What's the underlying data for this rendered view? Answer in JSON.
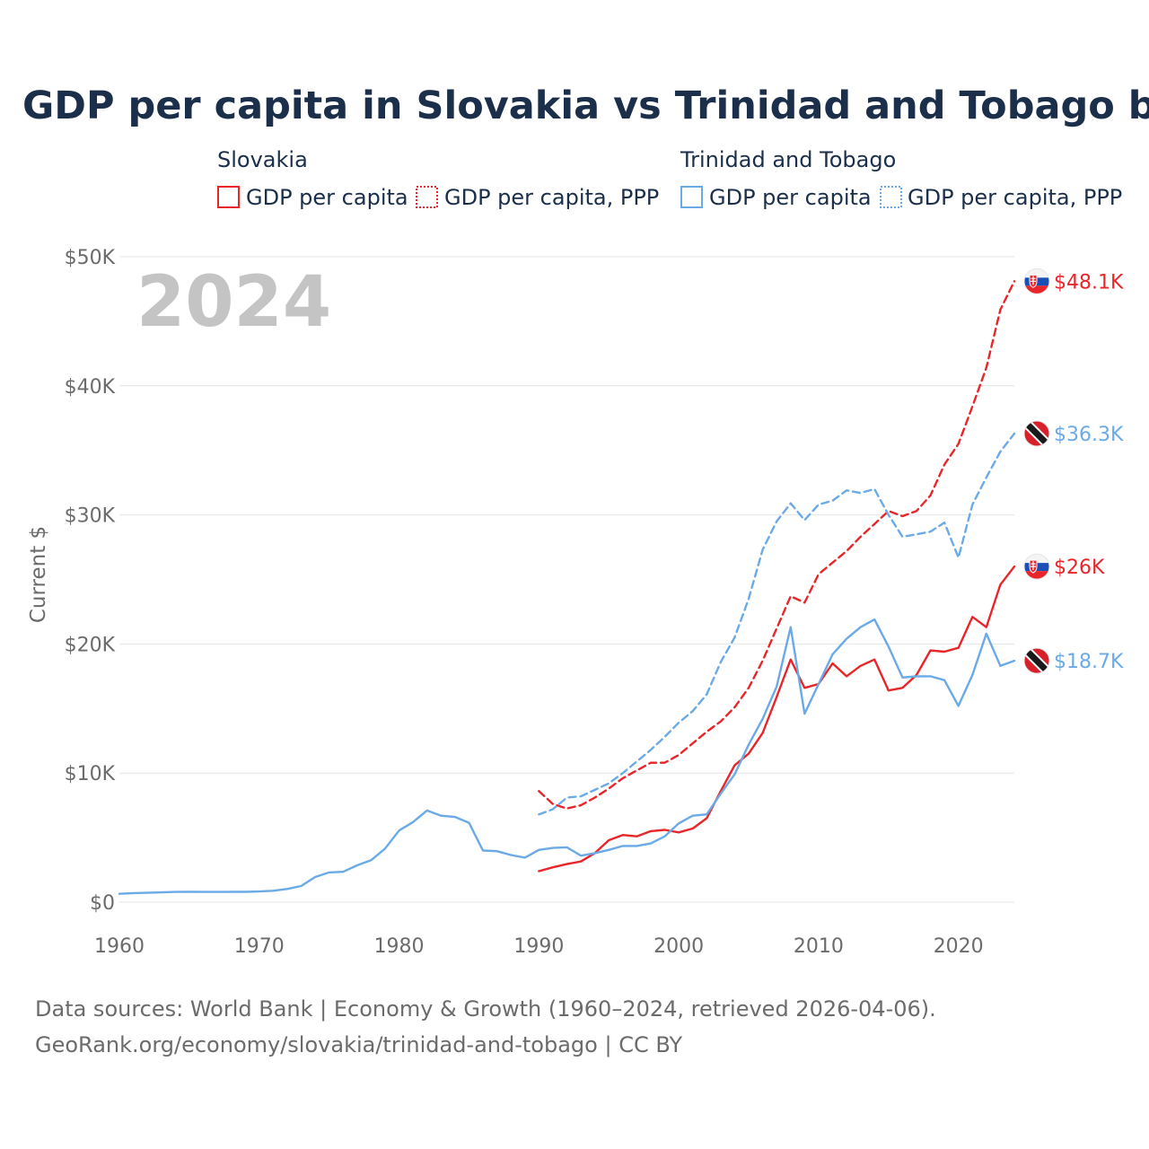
{
  "chart_data": {
    "type": "line",
    "title": "GDP per capita in Slovakia vs Trinidad and Tobago by year",
    "ylabel": "Current $",
    "xlabel": "",
    "xlim": [
      1960,
      2024
    ],
    "ylim": [
      0,
      50000
    ],
    "x_ticks": [
      1960,
      1970,
      1980,
      1990,
      2000,
      2010,
      2020
    ],
    "x_tick_labels": [
      "1960",
      "1970",
      "1980",
      "1990",
      "2000",
      "2010",
      "2020"
    ],
    "y_ticks": [
      0,
      10000,
      20000,
      30000,
      40000,
      50000
    ],
    "y_tick_labels": [
      "$0",
      "$10K",
      "$20K",
      "$30K",
      "$40K",
      "$50K"
    ],
    "grid": true,
    "year_watermark": "2024",
    "legend": {
      "groups": [
        {
          "country": "Slovakia",
          "items": [
            "GDP per capita",
            "GDP per capita, PPP"
          ]
        },
        {
          "country": "Trinidad and Tobago",
          "items": [
            "GDP per capita",
            "GDP per capita, PPP"
          ]
        }
      ]
    },
    "colors": {
      "Slovakia": "#e8262a",
      "Trinidad and Tobago": "#6aaae6"
    },
    "series": [
      {
        "name": "Slovakia GDP per capita",
        "country": "Slovakia",
        "style": "solid",
        "end_label": "$26K",
        "x": [
          1990,
          1991,
          1992,
          1993,
          1994,
          1995,
          1996,
          1997,
          1998,
          1999,
          2000,
          2001,
          2002,
          2003,
          2004,
          2005,
          2006,
          2007,
          2008,
          2009,
          2010,
          2011,
          2012,
          2013,
          2014,
          2015,
          2016,
          2017,
          2018,
          2019,
          2020,
          2021,
          2022,
          2023,
          2024
        ],
        "values": [
          2400,
          2700,
          2950,
          3150,
          3800,
          4800,
          5200,
          5100,
          5500,
          5600,
          5400,
          5700,
          6500,
          8600,
          10600,
          11500,
          13100,
          15900,
          18800,
          16600,
          16900,
          18500,
          17500,
          18300,
          18800,
          16400,
          16600,
          17600,
          19500,
          19400,
          19700,
          22100,
          21300,
          24600,
          26000
        ]
      },
      {
        "name": "Slovakia GDP per capita, PPP",
        "country": "Slovakia",
        "style": "dashed",
        "end_label": "$48.1K",
        "x": [
          1990,
          1991,
          1992,
          1993,
          1994,
          1995,
          1996,
          1997,
          1998,
          1999,
          2000,
          2001,
          2002,
          2003,
          2004,
          2005,
          2006,
          2007,
          2008,
          2009,
          2010,
          2011,
          2012,
          2013,
          2014,
          2015,
          2016,
          2017,
          2018,
          2019,
          2020,
          2021,
          2022,
          2023,
          2024
        ],
        "values": [
          8600,
          7600,
          7250,
          7500,
          8100,
          8800,
          9600,
          10200,
          10800,
          10800,
          11400,
          12300,
          13200,
          14000,
          15100,
          16600,
          18700,
          21200,
          23700,
          23200,
          25400,
          26300,
          27200,
          28300,
          29300,
          30300,
          29900,
          30300,
          31500,
          33900,
          35500,
          38400,
          41400,
          45900,
          48100
        ]
      },
      {
        "name": "Trinidad and Tobago GDP per capita",
        "country": "Trinidad and Tobago",
        "style": "solid",
        "end_label": "$18.7K",
        "x": [
          1960,
          1961,
          1962,
          1963,
          1964,
          1965,
          1966,
          1967,
          1968,
          1969,
          1970,
          1971,
          1972,
          1973,
          1974,
          1975,
          1976,
          1977,
          1978,
          1979,
          1980,
          1981,
          1982,
          1983,
          1984,
          1985,
          1986,
          1987,
          1988,
          1989,
          1990,
          1991,
          1992,
          1993,
          1994,
          1995,
          1996,
          1997,
          1998,
          1999,
          2000,
          2001,
          2002,
          2003,
          2004,
          2005,
          2006,
          2007,
          2008,
          2009,
          2010,
          2011,
          2012,
          2013,
          2014,
          2015,
          2016,
          2017,
          2018,
          2019,
          2020,
          2021,
          2022,
          2023,
          2024
        ],
        "values": [
          650,
          700,
          720,
          760,
          790,
          800,
          790,
          790,
          800,
          800,
          830,
          880,
          1020,
          1250,
          1950,
          2300,
          2350,
          2850,
          3250,
          4150,
          5550,
          6200,
          7100,
          6700,
          6600,
          6150,
          4000,
          3950,
          3650,
          3450,
          4050,
          4200,
          4250,
          3600,
          3800,
          4050,
          4350,
          4350,
          4550,
          5100,
          6100,
          6700,
          6800,
          8400,
          9900,
          12200,
          14200,
          16700,
          21300,
          14600,
          16900,
          19200,
          20400,
          21300,
          21900,
          19800,
          17400,
          17500,
          17500,
          17200,
          15200,
          17600,
          20800,
          18300,
          18700
        ]
      },
      {
        "name": "Trinidad and Tobago GDP per capita, PPP",
        "country": "Trinidad and Tobago",
        "style": "dashed",
        "end_label": "$36.3K",
        "x": [
          1990,
          1991,
          1992,
          1993,
          1994,
          1995,
          1996,
          1997,
          1998,
          1999,
          2000,
          2001,
          2002,
          2003,
          2004,
          2005,
          2006,
          2007,
          2008,
          2009,
          2010,
          2011,
          2012,
          2013,
          2014,
          2015,
          2016,
          2017,
          2018,
          2019,
          2020,
          2021,
          2022,
          2023,
          2024
        ],
        "values": [
          6800,
          7200,
          8100,
          8200,
          8700,
          9200,
          10000,
          10900,
          11800,
          12800,
          13900,
          14800,
          16100,
          18600,
          20500,
          23500,
          27300,
          29500,
          30900,
          29600,
          30800,
          31100,
          31900,
          31700,
          32000,
          30000,
          28300,
          28500,
          28700,
          29400,
          26700,
          30800,
          32900,
          34900,
          36300
        ]
      }
    ]
  },
  "footer": {
    "source_line": "Data sources: World Bank | Economy & Growth (1960–2024, retrieved 2026-04-06).",
    "site_line": "GeoRank.org/economy/slovakia/trinidad-and-tobago | CC BY"
  }
}
